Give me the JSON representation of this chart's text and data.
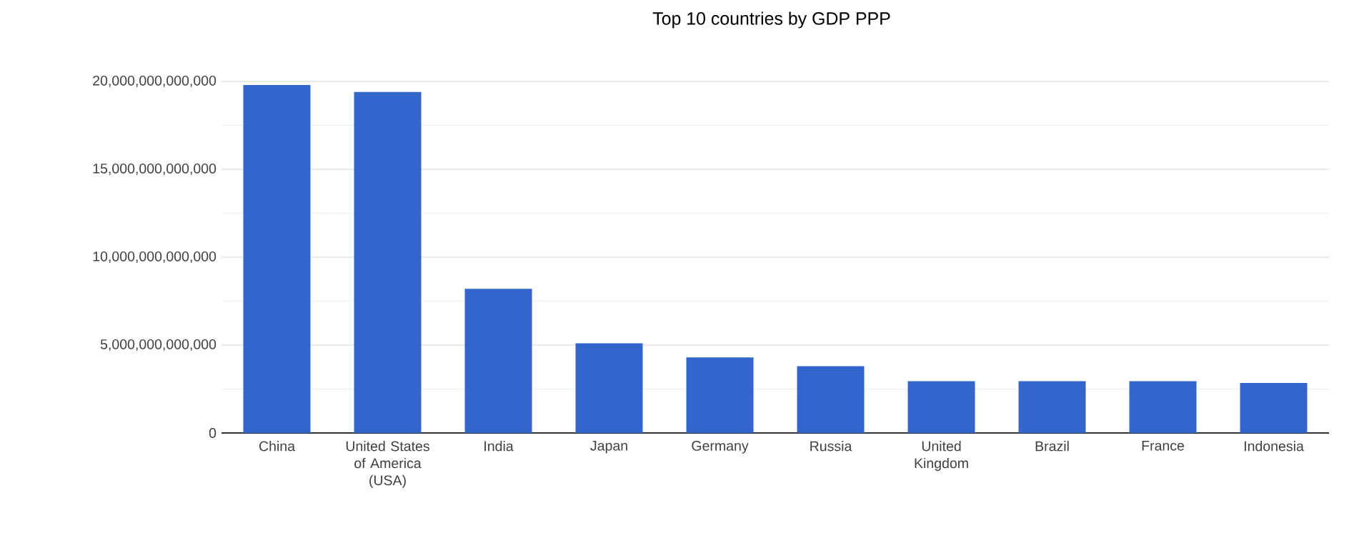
{
  "chart_data": {
    "type": "bar",
    "title": "Top 10 countries by GDP PPP",
    "categories": [
      "China",
      "United States of America (USA)",
      "India",
      "Japan",
      "Germany",
      "Russia",
      "United Kingdom",
      "Brazil",
      "France",
      "Indonesia"
    ],
    "values": [
      19800000000000,
      19400000000000,
      8200000000000,
      5100000000000,
      4300000000000,
      3800000000000,
      2950000000000,
      2950000000000,
      2950000000000,
      2850000000000
    ],
    "color": "#3366cc",
    "ylim": [
      0,
      20000000000000
    ],
    "yticks": [
      0,
      {
        "value": 5000000000000,
        "label": "5,000,000,000,000"
      },
      {
        "value": 10000000000000,
        "label": "10,000,000,000,000"
      },
      {
        "value": 15000000000000,
        "label": "15,000,000,000,000"
      },
      {
        "value": 20000000000000,
        "label": "20,000,000,000,000"
      }
    ],
    "grid": "y"
  }
}
